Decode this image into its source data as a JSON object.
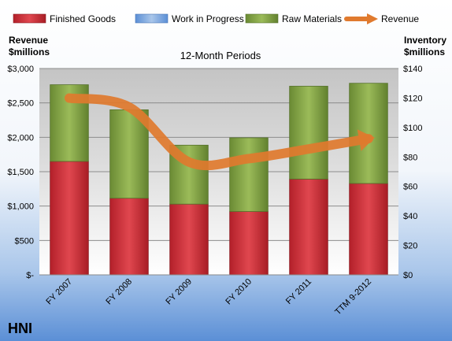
{
  "chart_data": {
    "type": "bar",
    "subtitle": "12-Month Periods",
    "company": "HNI",
    "left_axis_title": [
      "Revenue",
      "$millions"
    ],
    "right_axis_title": [
      "Inventory",
      "$millions"
    ],
    "categories": [
      "FY 2007",
      "FY 2008",
      "FY 2009",
      "FY 2010",
      "FY 2011",
      "TTM 9-2012"
    ],
    "series": [
      {
        "name": "Finished Goods",
        "type": "bar",
        "axis": "right",
        "color": "#c0272d",
        "values": [
          77,
          52,
          48,
          43,
          65,
          62
        ]
      },
      {
        "name": "Work in Progress",
        "type": "bar",
        "axis": "right",
        "color": "#7ba7d7",
        "values": [
          0,
          0,
          0,
          0,
          0,
          0
        ]
      },
      {
        "name": "Raw Materials",
        "type": "bar",
        "axis": "right",
        "color": "#77933c",
        "values": [
          52,
          60,
          40,
          50,
          63,
          68
        ]
      },
      {
        "name": "Revenue",
        "type": "line",
        "axis": "left",
        "color": "#e07a2e",
        "values": [
          2570,
          2440,
          1640,
          1690,
          1830,
          1980
        ]
      }
    ],
    "left_axis": {
      "ylim": [
        0,
        3000
      ],
      "ticks": [
        "$-",
        "$500",
        "$1,000",
        "$1,500",
        "$2,000",
        "$2,500",
        "$3,000"
      ]
    },
    "right_axis": {
      "ylim": [
        0,
        140
      ],
      "ticks": [
        "$0",
        "$20",
        "$40",
        "$60",
        "$80",
        "$100",
        "$120",
        "$140"
      ]
    },
    "grid": true,
    "legend_position": "top"
  }
}
